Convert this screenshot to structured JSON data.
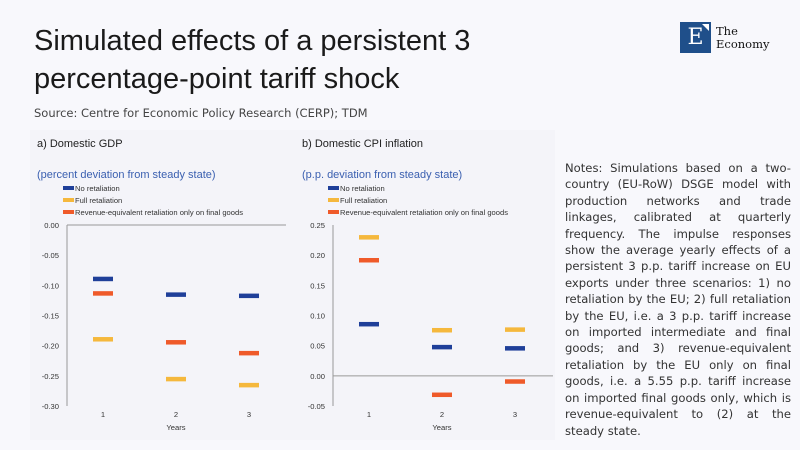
{
  "header": {
    "title": "Simulated effects of a persistent 3 percentage-point tariff shock",
    "source": "Source: Centre for Economic Policy Research (CERP); TDM"
  },
  "logo": {
    "letter": "E",
    "line1": "The",
    "line2": "Economy",
    "color": "#1f4f8a"
  },
  "notes": "Notes: Simulations based on a two-country (EU-RoW) DSGE model with production networks and trade linkages, calibrated at quarterly frequency. The impulse responses show the average yearly effects of a persistent 3 p.p. tariff increase on EU exports under three scenarios: 1) no retaliation by the EU; 2) full retaliation by the EU, i.e. a 3 p.p. tariff increase on imported intermediate and final goods; and 3) revenue-equivalent retaliation by the EU only on final goods, i.e. a 5.55 p.p. tariff increase on imported final goods only, which is revenue-equivalent to (2) at the steady state.",
  "chart_data": [
    {
      "type": "scatter",
      "title": "a) Domestic GDP",
      "subtitle": "(percent deviation from steady state)",
      "xlabel": "Years",
      "ylabel": "",
      "categories": [
        "1",
        "2",
        "3"
      ],
      "ylim": [
        -0.3,
        0.0
      ],
      "yticks": [
        "0.00",
        "-0.05",
        "-0.10",
        "-0.15",
        "-0.20",
        "-0.25",
        "-0.30"
      ],
      "legend": "top-left",
      "grid": false,
      "series": [
        {
          "name": "No retaliation",
          "color": "#1f3f99",
          "values": [
            -0.089,
            -0.115,
            -0.117
          ]
        },
        {
          "name": "Full retaliation",
          "color": "#f5b83d",
          "values": [
            -0.189,
            -0.255,
            -0.265
          ]
        },
        {
          "name": "Revenue-equivalent retaliation only on final goods",
          "color": "#ef5a2a",
          "values": [
            -0.113,
            -0.194,
            -0.212
          ]
        }
      ]
    },
    {
      "type": "scatter",
      "title": "b) Domestic CPI inflation",
      "subtitle": "(p.p. deviation from steady state)",
      "xlabel": "Years",
      "ylabel": "",
      "categories": [
        "1",
        "2",
        "3"
      ],
      "ylim": [
        -0.05,
        0.25
      ],
      "yticks": [
        "0.25",
        "0.20",
        "0.15",
        "0.10",
        "0.05",
        "0.00",
        "-0.05"
      ],
      "legend": "top-left",
      "grid": false,
      "series": [
        {
          "name": "No retaliation",
          "color": "#1f3f99",
          "values": [
            0.086,
            0.048,
            0.046
          ]
        },
        {
          "name": "Full retaliation",
          "color": "#f5b83d",
          "values": [
            0.23,
            0.076,
            0.077
          ]
        },
        {
          "name": "Revenue-equivalent retaliation only on final goods",
          "color": "#ef5a2a",
          "values": [
            0.192,
            -0.031,
            -0.009
          ]
        }
      ]
    }
  ]
}
